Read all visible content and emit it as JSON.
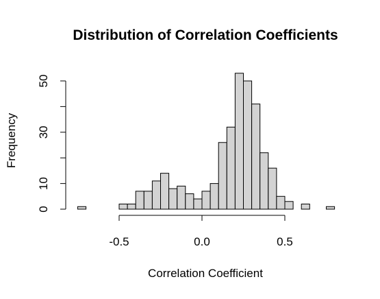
{
  "chart_data": {
    "type": "bar",
    "subtype": "histogram",
    "title": "Distribution of Correlation Coefficients",
    "xlabel": "Correlation Coefficient",
    "ylabel": "Frequency",
    "xlim": [
      -0.75,
      0.8
    ],
    "ylim": [
      0,
      53
    ],
    "x_ticks": [
      -0.5,
      0.0,
      0.5
    ],
    "x_tick_labels": [
      "-0.5",
      "0.0",
      "0.5"
    ],
    "y_ticks": [
      0,
      10,
      20,
      30,
      40,
      50
    ],
    "y_tick_labels": [
      "0",
      "10",
      "",
      "30",
      "",
      "50"
    ],
    "bar_color": "#d3d3d3",
    "border_color": "#000000",
    "bin_width": 0.05,
    "bins": [
      {
        "start": -0.75,
        "end": -0.7,
        "count": 1
      },
      {
        "start": -0.7,
        "end": -0.65,
        "count": 0
      },
      {
        "start": -0.65,
        "end": -0.6,
        "count": 0
      },
      {
        "start": -0.6,
        "end": -0.55,
        "count": 0
      },
      {
        "start": -0.55,
        "end": -0.5,
        "count": 0
      },
      {
        "start": -0.5,
        "end": -0.45,
        "count": 2
      },
      {
        "start": -0.45,
        "end": -0.4,
        "count": 2
      },
      {
        "start": -0.4,
        "end": -0.35,
        "count": 7
      },
      {
        "start": -0.35,
        "end": -0.3,
        "count": 7
      },
      {
        "start": -0.3,
        "end": -0.25,
        "count": 11
      },
      {
        "start": -0.25,
        "end": -0.2,
        "count": 14
      },
      {
        "start": -0.2,
        "end": -0.15,
        "count": 8
      },
      {
        "start": -0.15,
        "end": -0.1,
        "count": 9
      },
      {
        "start": -0.1,
        "end": -0.05,
        "count": 6
      },
      {
        "start": -0.05,
        "end": 0.0,
        "count": 4
      },
      {
        "start": 0.0,
        "end": 0.05,
        "count": 7
      },
      {
        "start": 0.05,
        "end": 0.1,
        "count": 10
      },
      {
        "start": 0.1,
        "end": 0.15,
        "count": 26
      },
      {
        "start": 0.15,
        "end": 0.2,
        "count": 32
      },
      {
        "start": 0.2,
        "end": 0.25,
        "count": 53
      },
      {
        "start": 0.25,
        "end": 0.3,
        "count": 50
      },
      {
        "start": 0.3,
        "end": 0.35,
        "count": 41
      },
      {
        "start": 0.35,
        "end": 0.4,
        "count": 22
      },
      {
        "start": 0.4,
        "end": 0.45,
        "count": 16
      },
      {
        "start": 0.45,
        "end": 0.5,
        "count": 5
      },
      {
        "start": 0.5,
        "end": 0.55,
        "count": 3
      },
      {
        "start": 0.55,
        "end": 0.6,
        "count": 0
      },
      {
        "start": 0.6,
        "end": 0.65,
        "count": 2
      },
      {
        "start": 0.65,
        "end": 0.7,
        "count": 0
      },
      {
        "start": 0.7,
        "end": 0.75,
        "count": 0
      },
      {
        "start": 0.75,
        "end": 0.8,
        "count": 1
      }
    ],
    "grid": false,
    "legend": "none"
  }
}
